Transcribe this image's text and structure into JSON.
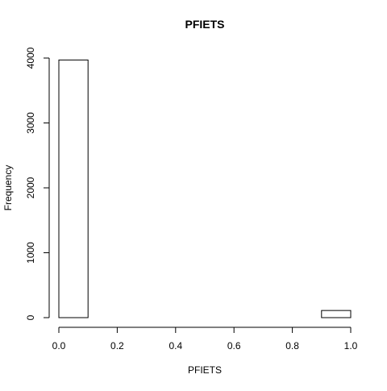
{
  "chart_data": {
    "type": "bar",
    "title": "PFIETS",
    "xlabel": "PFIETS",
    "ylabel": "Frequency",
    "bins": [
      {
        "start": 0.0,
        "end": 0.1,
        "count": 3970
      },
      {
        "start": 0.1,
        "end": 0.2,
        "count": 0
      },
      {
        "start": 0.2,
        "end": 0.3,
        "count": 0
      },
      {
        "start": 0.3,
        "end": 0.4,
        "count": 0
      },
      {
        "start": 0.4,
        "end": 0.5,
        "count": 0
      },
      {
        "start": 0.5,
        "end": 0.6,
        "count": 0
      },
      {
        "start": 0.6,
        "end": 0.7,
        "count": 0
      },
      {
        "start": 0.7,
        "end": 0.8,
        "count": 0
      },
      {
        "start": 0.8,
        "end": 0.9,
        "count": 0
      },
      {
        "start": 0.9,
        "end": 1.0,
        "count": 110
      }
    ],
    "x_ticks": [
      0.0,
      0.2,
      0.4,
      0.6,
      0.8,
      1.0
    ],
    "x_tick_labels": [
      "0.0",
      "0.2",
      "0.4",
      "0.6",
      "0.8",
      "1.0"
    ],
    "y_ticks": [
      0,
      1000,
      2000,
      3000,
      4000
    ],
    "y_tick_labels": [
      "0",
      "1000",
      "2000",
      "3000",
      "4000"
    ],
    "xlim": [
      0.0,
      1.0
    ],
    "ylim": [
      0,
      4000
    ],
    "grid": false,
    "colors": {
      "bar_fill": "#ffffff",
      "bar_stroke": "#000000",
      "axis": "#000000",
      "text": "#000000"
    }
  }
}
